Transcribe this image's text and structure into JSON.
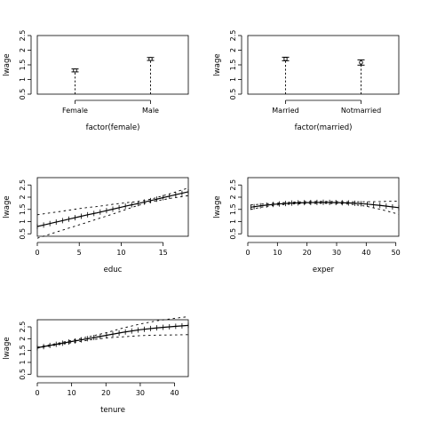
{
  "chart_data": [
    {
      "type": "errorbar",
      "xlabel": "factor(female)",
      "ylabel": "lwage",
      "ylim": [
        0.5,
        2.5
      ],
      "yticks": [
        0.5,
        1.0,
        1.5,
        2.0,
        2.5
      ],
      "ytick_labels": [
        "0.5",
        "1",
        "1.5",
        "2",
        "2.5"
      ],
      "categories": [
        "Female",
        "Male"
      ],
      "estimates": [
        1.31,
        1.7
      ],
      "lower": [
        1.26,
        1.65
      ],
      "upper": [
        1.36,
        1.75
      ]
    },
    {
      "type": "errorbar",
      "xlabel": "factor(married)",
      "ylabel": "lwage",
      "ylim": [
        0.5,
        2.5
      ],
      "yticks": [
        0.5,
        1.0,
        1.5,
        2.0,
        2.5
      ],
      "ytick_labels": [
        "0.5",
        "1",
        "1.5",
        "2",
        "2.5"
      ],
      "categories": [
        "Married",
        "Notmarried"
      ],
      "estimates": [
        1.7,
        1.58
      ],
      "lower": [
        1.64,
        1.49
      ],
      "upper": [
        1.76,
        1.67
      ]
    },
    {
      "type": "line",
      "xlabel": "educ",
      "ylabel": "lwage",
      "xlim": [
        0,
        18
      ],
      "ylim": [
        0.4,
        2.8
      ],
      "xticks": [
        0,
        5,
        10,
        15
      ],
      "yticks": [
        0.5,
        1.0,
        1.5,
        2.0,
        2.5
      ],
      "ytick_labels": [
        "0.5",
        "1",
        "1.5",
        "2",
        "2.5"
      ],
      "x": [
        0,
        1,
        2,
        3,
        4,
        5,
        6,
        7,
        8,
        9,
        10,
        11,
        12,
        13,
        14,
        15,
        16,
        17,
        18
      ],
      "fit": [
        0.8,
        0.88,
        0.96,
        1.04,
        1.12,
        1.2,
        1.28,
        1.35,
        1.43,
        1.51,
        1.59,
        1.67,
        1.74,
        1.82,
        1.9,
        1.98,
        2.06,
        2.14,
        2.22
      ],
      "lower": [
        0.32,
        0.43,
        0.54,
        0.65,
        0.76,
        0.87,
        0.98,
        1.09,
        1.2,
        1.31,
        1.43,
        1.55,
        1.66,
        1.76,
        1.84,
        1.9,
        1.96,
        2.01,
        2.06
      ],
      "upper": [
        1.28,
        1.33,
        1.38,
        1.43,
        1.48,
        1.53,
        1.58,
        1.61,
        1.66,
        1.71,
        1.75,
        1.79,
        1.82,
        1.88,
        1.96,
        2.06,
        2.16,
        2.27,
        2.38
      ]
    },
    {
      "type": "line",
      "xlabel": "exper",
      "ylabel": "lwage",
      "xlim": [
        0,
        51
      ],
      "ylim": [
        0.4,
        2.8
      ],
      "xticks": [
        0,
        10,
        20,
        30,
        40,
        50
      ],
      "yticks": [
        0.5,
        1.0,
        1.5,
        2.0,
        2.5
      ],
      "ytick_labels": [
        "0.5",
        "1",
        "1.5",
        "2",
        "2.5"
      ],
      "x": [
        1,
        5,
        10,
        15,
        20,
        25,
        30,
        35,
        40,
        45,
        51
      ],
      "fit": [
        1.59,
        1.66,
        1.72,
        1.76,
        1.78,
        1.79,
        1.78,
        1.76,
        1.72,
        1.66,
        1.57
      ],
      "lower": [
        1.5,
        1.6,
        1.68,
        1.72,
        1.74,
        1.75,
        1.74,
        1.71,
        1.63,
        1.5,
        1.3
      ],
      "upper": [
        1.68,
        1.72,
        1.76,
        1.8,
        1.82,
        1.83,
        1.82,
        1.81,
        1.81,
        1.82,
        1.84
      ]
    },
    {
      "type": "line",
      "xlabel": "tenure",
      "ylabel": "lwage",
      "xlim": [
        0,
        44
      ],
      "ylim": [
        0.4,
        2.8
      ],
      "xticks": [
        0,
        10,
        20,
        30,
        40
      ],
      "yticks": [
        0.5,
        1.0,
        1.5,
        2.0,
        2.5
      ],
      "ytick_labels": [
        "0.5",
        "1",
        "1.5",
        "2",
        "2.5"
      ],
      "x": [
        0,
        5,
        10,
        15,
        20,
        25,
        30,
        35,
        40,
        44
      ],
      "fit": [
        1.62,
        1.75,
        1.88,
        2.01,
        2.14,
        2.27,
        2.38,
        2.46,
        2.52,
        2.56
      ],
      "lower": [
        1.6,
        1.72,
        1.83,
        1.94,
        2.03,
        2.08,
        2.13,
        2.15,
        2.16,
        2.17
      ],
      "upper": [
        1.64,
        1.78,
        1.93,
        2.08,
        2.25,
        2.45,
        2.62,
        2.76,
        2.86,
        2.93
      ]
    }
  ]
}
